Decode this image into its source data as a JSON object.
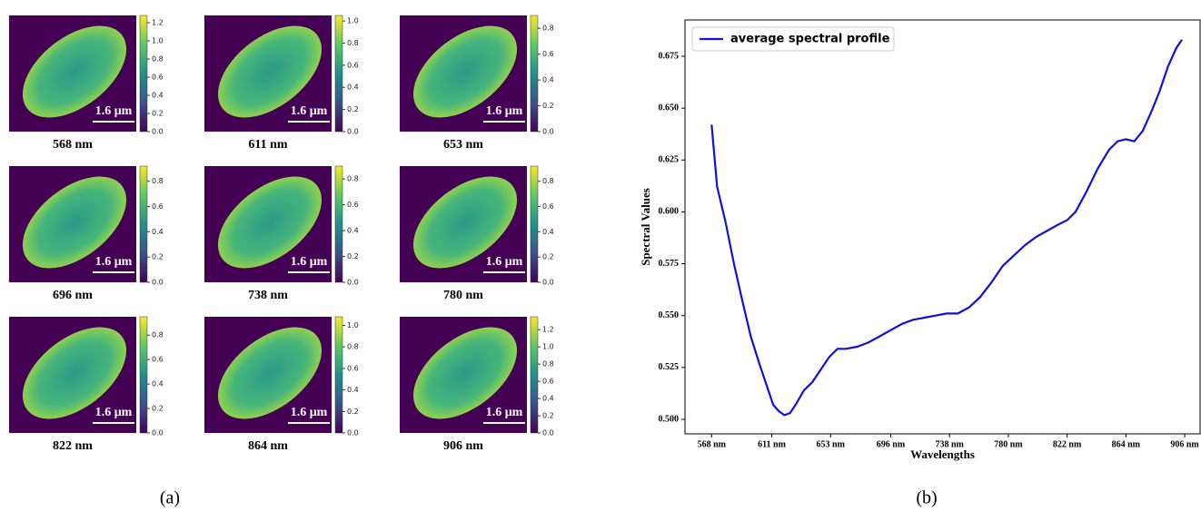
{
  "chart_data": [
    {
      "type": "heatmap",
      "xlabel": "568 nm",
      "annotation": "1.6 μm",
      "clim": [
        0,
        1.28
      ],
      "cticks": [
        {
          "value": 0,
          "label": "0.0"
        },
        0.2,
        0.4,
        0.6,
        0.8,
        {
          "value": 1,
          "label": "1.0"
        },
        1.2
      ]
    },
    {
      "type": "heatmap",
      "xlabel": "611 nm",
      "annotation": "1.6 μm",
      "clim": [
        0,
        1.05
      ],
      "cticks": [
        {
          "value": 0,
          "label": "0.0"
        },
        0.2,
        0.4,
        0.6,
        0.8,
        {
          "value": 1,
          "label": "1.0"
        }
      ]
    },
    {
      "type": "heatmap",
      "xlabel": "653 nm",
      "annotation": "1.6 μm",
      "clim": [
        0,
        0.9
      ],
      "cticks": [
        {
          "value": 0,
          "label": "0.0"
        },
        0.2,
        0.4,
        0.6,
        0.8
      ]
    },
    {
      "type": "heatmap",
      "xlabel": "696 nm",
      "annotation": "1.6 μm",
      "clim": [
        0,
        0.92
      ],
      "cticks": [
        {
          "value": 0,
          "label": "0.0"
        },
        0.2,
        0.4,
        0.6,
        0.8
      ]
    },
    {
      "type": "heatmap",
      "xlabel": "738 nm",
      "annotation": "1.6 μm",
      "clim": [
        0,
        0.9
      ],
      "cticks": [
        {
          "value": 0,
          "label": "0.0"
        },
        0.2,
        0.4,
        0.6,
        0.8
      ]
    },
    {
      "type": "heatmap",
      "xlabel": "780 nm",
      "annotation": "1.6 μm",
      "clim": [
        0,
        0.92
      ],
      "cticks": [
        {
          "value": 0,
          "label": "0.0"
        },
        0.2,
        0.4,
        0.6,
        0.8
      ]
    },
    {
      "type": "heatmap",
      "xlabel": "822 nm",
      "annotation": "1.6 μm",
      "clim": [
        0,
        0.95
      ],
      "cticks": [
        {
          "value": 0,
          "label": "0.0"
        },
        0.2,
        0.4,
        0.6,
        0.8
      ]
    },
    {
      "type": "heatmap",
      "xlabel": "864 nm",
      "annotation": "1.6 μm",
      "clim": [
        0,
        1.08
      ],
      "cticks": [
        {
          "value": 0,
          "label": "0.0"
        },
        0.2,
        0.4,
        0.6,
        0.8,
        {
          "value": 1,
          "label": "1.0"
        }
      ]
    },
    {
      "type": "heatmap",
      "xlabel": "906 nm",
      "annotation": "1.6 μm",
      "clim": [
        0,
        1.35
      ],
      "cticks": [
        {
          "value": 0,
          "label": "0.0"
        },
        0.2,
        0.4,
        0.6,
        0.8,
        {
          "value": 1,
          "label": "1.0"
        },
        1.2
      ]
    },
    {
      "type": "line",
      "xlabel": "Wavelengths",
      "ylabel": "Spectral Values",
      "legend": "upper left",
      "x": [
        568,
        572,
        578,
        584,
        590,
        596,
        602,
        608,
        612,
        616,
        620,
        624,
        628,
        634,
        640,
        646,
        652,
        658,
        664,
        672,
        680,
        688,
        696,
        704,
        712,
        720,
        728,
        736,
        744,
        752,
        760,
        768,
        776,
        784,
        792,
        800,
        808,
        816,
        822,
        828,
        836,
        844,
        852,
        858,
        864,
        870,
        876,
        882,
        888,
        894,
        900,
        904
      ],
      "series": [
        {
          "name": "average spectral profile",
          "color": "#1010e0",
          "values": [
            0.642,
            0.612,
            0.595,
            0.575,
            0.557,
            0.54,
            0.527,
            0.515,
            0.507,
            0.504,
            0.502,
            0.503,
            0.507,
            0.514,
            0.518,
            0.524,
            0.53,
            0.534,
            0.534,
            0.535,
            0.537,
            0.54,
            0.543,
            0.546,
            0.548,
            0.549,
            0.55,
            0.551,
            0.551,
            0.554,
            0.559,
            0.566,
            0.574,
            0.579,
            0.584,
            0.588,
            0.591,
            0.594,
            0.596,
            0.6,
            0.61,
            0.621,
            0.63,
            0.634,
            0.635,
            0.634,
            0.639,
            0.648,
            0.658,
            0.67,
            0.679,
            0.683
          ]
        }
      ],
      "xlim": [
        549,
        917
      ],
      "ylim": [
        0.493,
        0.6925
      ],
      "xticks": [
        {
          "value": 568,
          "label": "568 nm"
        },
        {
          "value": 611,
          "label": "611 nm"
        },
        {
          "value": 653,
          "label": "653 nm"
        },
        {
          "value": 696,
          "label": "696 nm"
        },
        {
          "value": 738,
          "label": "738 nm"
        },
        {
          "value": 780,
          "label": "780 nm"
        },
        {
          "value": 822,
          "label": "822 nm"
        },
        {
          "value": 864,
          "label": "864 nm"
        },
        {
          "value": 906,
          "label": "906 nm"
        }
      ],
      "yticks": [
        {
          "value": 0.5,
          "label": "0.500"
        },
        {
          "value": 0.525,
          "label": "0.525"
        },
        {
          "value": 0.55,
          "label": "0.550"
        },
        {
          "value": 0.575,
          "label": "0.575"
        },
        {
          "value": 0.6,
          "label": "0.600"
        },
        {
          "value": 0.625,
          "label": "0.625"
        },
        {
          "value": 0.65,
          "label": "0.650"
        },
        {
          "value": 0.675,
          "label": "0.675"
        }
      ]
    }
  ],
  "figure_labels": [
    "(a)",
    "(b)"
  ]
}
